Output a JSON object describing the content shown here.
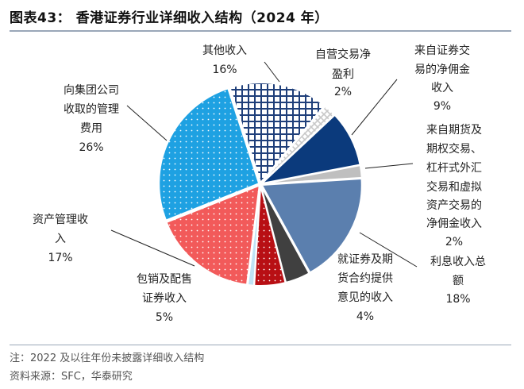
{
  "title": "图表43： 香港证券行业详细收入结构（2024 年）",
  "footer": {
    "note": "注：2022 及以往年份未披露详细收入结构",
    "source": "资料来源：SFC，华泰研究"
  },
  "chart_data": {
    "type": "pie",
    "title": "",
    "start_angle_deg": -18,
    "direction": "clockwise",
    "slices": [
      {
        "name": "其他收入",
        "label_lines": [
          "其他收入"
        ],
        "value": 16,
        "value_label": "16%",
        "color": "#1f3f7a",
        "fill_style": "crosshatch"
      },
      {
        "name": "自营交易净盈利",
        "label_lines": [
          "自营交易净",
          "盈利"
        ],
        "value": 2,
        "value_label": "2%",
        "color": "#c8c8c8",
        "fill_style": "crosshatch"
      },
      {
        "name": "来自证券交易的净佣金收入",
        "label_lines": [
          "来自证券交",
          "易的净佣金",
          "收入"
        ],
        "value": 9,
        "value_label": "9%",
        "color": "#0b3a7c",
        "fill_style": "solid"
      },
      {
        "name": "来自期货及期权交易、杠杆式外汇交易和虚拟资产交易的净佣金收入",
        "label_lines": [
          "来自期货及",
          "期权交易、",
          "杠杆式外汇",
          "交易和虚拟",
          "资产交易的",
          "净佣金收入"
        ],
        "value": 2,
        "value_label": "2%",
        "color": "#bfbfbf",
        "fill_style": "solid"
      },
      {
        "name": "利息收入总额",
        "label_lines": [
          "利息收入总",
          "额"
        ],
        "value": 18,
        "value_label": "18%",
        "color": "#5b7fae",
        "fill_style": "solid"
      },
      {
        "name": "就证券及期货合约提供意见的收入",
        "label_lines": [
          "就证券及期",
          "货合约提供",
          "意见的收入"
        ],
        "value": 4,
        "value_label": "4%",
        "color": "#404040",
        "fill_style": "solid"
      },
      {
        "name": "包销及配售证券收入",
        "label_lines": [
          "包销及配售",
          "证券收入"
        ],
        "value": 5,
        "value_label": "5%",
        "color": "#b80f14",
        "fill_style": "dots"
      },
      {
        "name": "",
        "label_lines": [],
        "value": 1,
        "value_label": "",
        "color": "#bfe3f5",
        "fill_style": "solid"
      },
      {
        "name": "资产管理收入",
        "label_lines": [
          "资产管理收",
          "入"
        ],
        "value": 17,
        "value_label": "17%",
        "color": "#f25a5a",
        "fill_style": "dots"
      },
      {
        "name": "向集团公司收取的管理费用",
        "label_lines": [
          "向集团公司",
          "收取的管理",
          "费用"
        ],
        "value": 26,
        "value_label": "26%",
        "color": "#1ea1e2",
        "fill_style": "dots"
      }
    ]
  }
}
